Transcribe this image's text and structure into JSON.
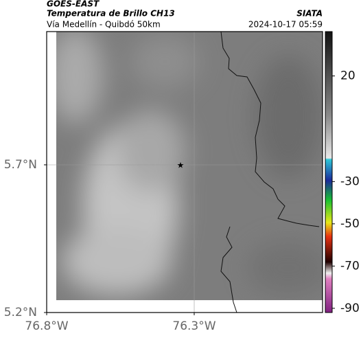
{
  "header": {
    "satellite": "GOES-EAST",
    "product": "Temperatura de Brillo CH13",
    "source": "SIATA",
    "route": "Vía Medellín - Quibdó 50km",
    "timestamp": "2024-10-17 05:59"
  },
  "map": {
    "xlim": [
      -76.8,
      -75.865
    ],
    "ylim": [
      5.2,
      6.151
    ],
    "xticks": [
      {
        "value": -76.8,
        "label": "76.8°W"
      },
      {
        "value": -76.3,
        "label": "76.3°W"
      }
    ],
    "yticks": [
      {
        "value": 5.2,
        "label": "5.2°N"
      },
      {
        "value": 5.7,
        "label": "5.7°N"
      }
    ]
  },
  "colorbar": {
    "lim": [
      -92,
      41
    ],
    "ticks": [
      20,
      -30,
      -50,
      -70,
      -90
    ]
  }
}
